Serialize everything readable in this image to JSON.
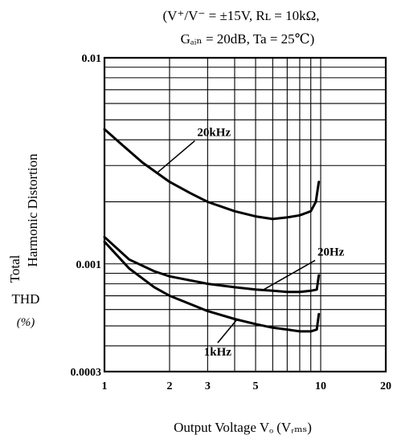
{
  "chart_data": {
    "type": "line",
    "title": {
      "line1": "(V⁺/V⁻ = ±15V,  Rʟ = 10kΩ,",
      "line2": "Gₐᵢₙ = 20dB,  Ta = 25℃)"
    },
    "xlabel": "Output Voltage Vₒ (Vᵣₘₛ)",
    "ylabel": {
      "line1": "Total",
      "line2": "Harmonic Distortion",
      "line3": "THD",
      "line4": "(%)"
    },
    "x_scale": "log",
    "y_scale": "log",
    "xlim": [
      1,
      20
    ],
    "ylim": [
      0.0003,
      0.01
    ],
    "grid": true,
    "x_ticks": [
      {
        "value": 1,
        "label": "1"
      },
      {
        "value": 2,
        "label": "2"
      },
      {
        "value": 3,
        "label": "3"
      },
      {
        "value": 5,
        "label": "5"
      },
      {
        "value": 10,
        "label": "10"
      },
      {
        "value": 20,
        "label": "20"
      }
    ],
    "y_ticks": [
      {
        "value": 0.01,
        "label": "0.01"
      },
      {
        "value": 0.001,
        "label": "0.001"
      },
      {
        "value": 0.0003,
        "label": "0.0003"
      }
    ],
    "series": [
      {
        "name": "20kHz",
        "x": [
          1,
          1.2,
          1.5,
          2,
          2.5,
          3,
          4,
          5,
          6,
          7,
          8,
          9,
          9.5,
          9.8
        ],
        "y": [
          0.0045,
          0.0038,
          0.0031,
          0.0025,
          0.0022,
          0.002,
          0.0018,
          0.0017,
          0.00165,
          0.00168,
          0.00172,
          0.0018,
          0.002,
          0.0025
        ]
      },
      {
        "name": "20Hz",
        "x": [
          1,
          1.3,
          1.7,
          2,
          3,
          4,
          5,
          6,
          7,
          8,
          9,
          9.6,
          9.8
        ],
        "y": [
          0.00135,
          0.00105,
          0.00092,
          0.00087,
          0.0008,
          0.00077,
          0.00075,
          0.00074,
          0.00073,
          0.00073,
          0.00074,
          0.00075,
          0.00088
        ]
      },
      {
        "name": "1kHz",
        "x": [
          1,
          1.3,
          1.7,
          2,
          3,
          4,
          5,
          6,
          7,
          8,
          9,
          9.6,
          9.8
        ],
        "y": [
          0.00128,
          0.00095,
          0.00077,
          0.0007,
          0.00059,
          0.00054,
          0.00051,
          0.00049,
          0.00048,
          0.00047,
          0.00047,
          0.00048,
          0.00057
        ]
      }
    ],
    "annotations": [
      {
        "text": "20kHz",
        "series": "20kHz"
      },
      {
        "text": "20Hz",
        "series": "20Hz"
      },
      {
        "text": "1kHz",
        "series": "1kHz"
      }
    ]
  }
}
